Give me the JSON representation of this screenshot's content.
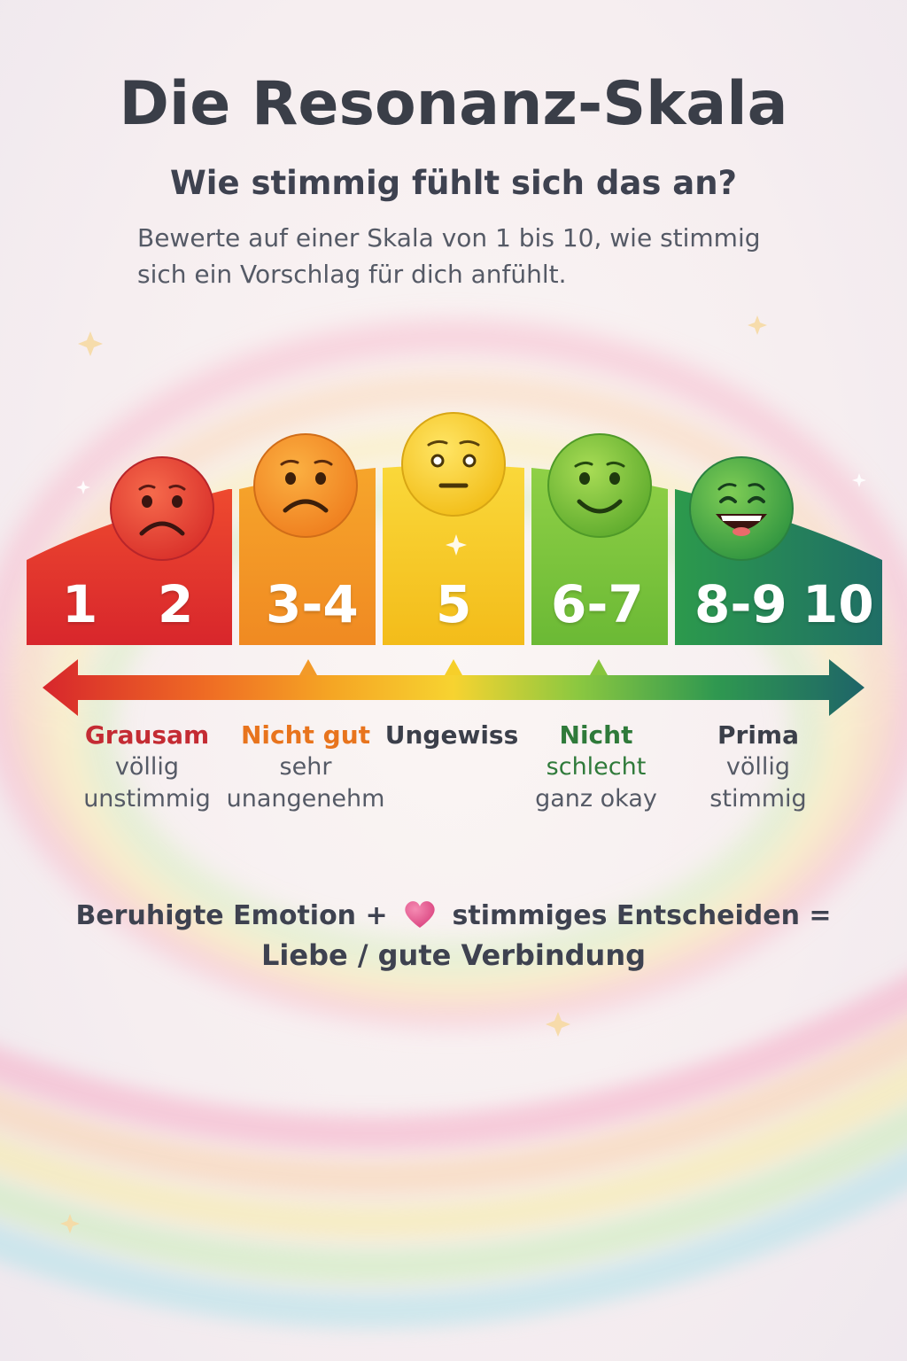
{
  "title": "Die Resonanz-Skala",
  "subtitle": "Wie stimmig fühlt sich das an?",
  "description": "Bewerte auf einer Skala von 1 bis 10, wie stimmig sich ein Vorschlag für dich anfühlt.",
  "scale": {
    "numbers": [
      "1",
      "2",
      "3-4",
      "5",
      "6-7",
      "8-9",
      "10"
    ],
    "colors": {
      "red": "#e5392c",
      "orange": "#f39a25",
      "yellow": "#f6cc1f",
      "lightgreen": "#7cc53a",
      "darkgreen": "#1f8a52",
      "teal": "#1e6f6a"
    },
    "faces": [
      "sad-face-icon",
      "worried-face-icon",
      "neutral-face-icon",
      "smile-face-icon",
      "grin-face-icon"
    ],
    "labels": [
      {
        "heading": "Grausam",
        "sub": [
          "völlig",
          "unstimmig"
        ],
        "color": "#c42b33"
      },
      {
        "heading": "Nicht gut",
        "sub": [
          "sehr",
          "unangenehm"
        ],
        "color": "#e8741d"
      },
      {
        "heading": "Ungewiss",
        "sub": [],
        "color": "#3b3f4a"
      },
      {
        "heading": "Nicht",
        "sub": [
          "schlecht",
          "ganz okay"
        ],
        "color": "#2f7a3a",
        "sub_colors": [
          "#2f7a3a",
          "#555a66"
        ]
      },
      {
        "heading": "Prima",
        "sub": [
          "völlig",
          "stimmig"
        ],
        "color": "#3b3f4a"
      }
    ]
  },
  "formula": {
    "part1": "Beruhigte Emotion +",
    "part2": "stimmiges Entscheiden =",
    "line2": "Liebe / gute Verbindung",
    "heart_icon": "heart-icon"
  }
}
